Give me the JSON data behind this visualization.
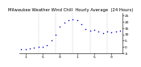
{
  "title": "Milwaukee Weather Wind Chill  Hourly Average  (24 Hours)",
  "title_fontsize": 3.8,
  "x_hours": [
    0,
    1,
    2,
    3,
    4,
    5,
    6,
    7,
    8,
    9,
    10,
    11,
    12,
    13,
    14,
    15,
    16,
    17,
    18,
    19,
    20,
    21,
    22,
    23
  ],
  "y_values": [
    -2,
    -1.5,
    -1,
    -0.5,
    0,
    0.5,
    1.5,
    5,
    10,
    16,
    19,
    21,
    22,
    21,
    18,
    14,
    13,
    13.5,
    12,
    11,
    12,
    11.5,
    12,
    13
  ],
  "dot_color": "#0000cc",
  "dot_size": 1.2,
  "bg_color": "#ffffff",
  "grid_color": "#aaaaaa",
  "ylim": [
    -5,
    27
  ],
  "tick_label_fontsize": 3.2,
  "ylabel_right_values": [
    25,
    20,
    15,
    10,
    5,
    0,
    -5
  ],
  "vgrid_positions": [
    4,
    8,
    12,
    16,
    20
  ],
  "xtick_positions": [
    1,
    5,
    9,
    13,
    17,
    21
  ],
  "xtick_labels": [
    "1",
    "5",
    "9",
    "1",
    "5",
    "9"
  ]
}
